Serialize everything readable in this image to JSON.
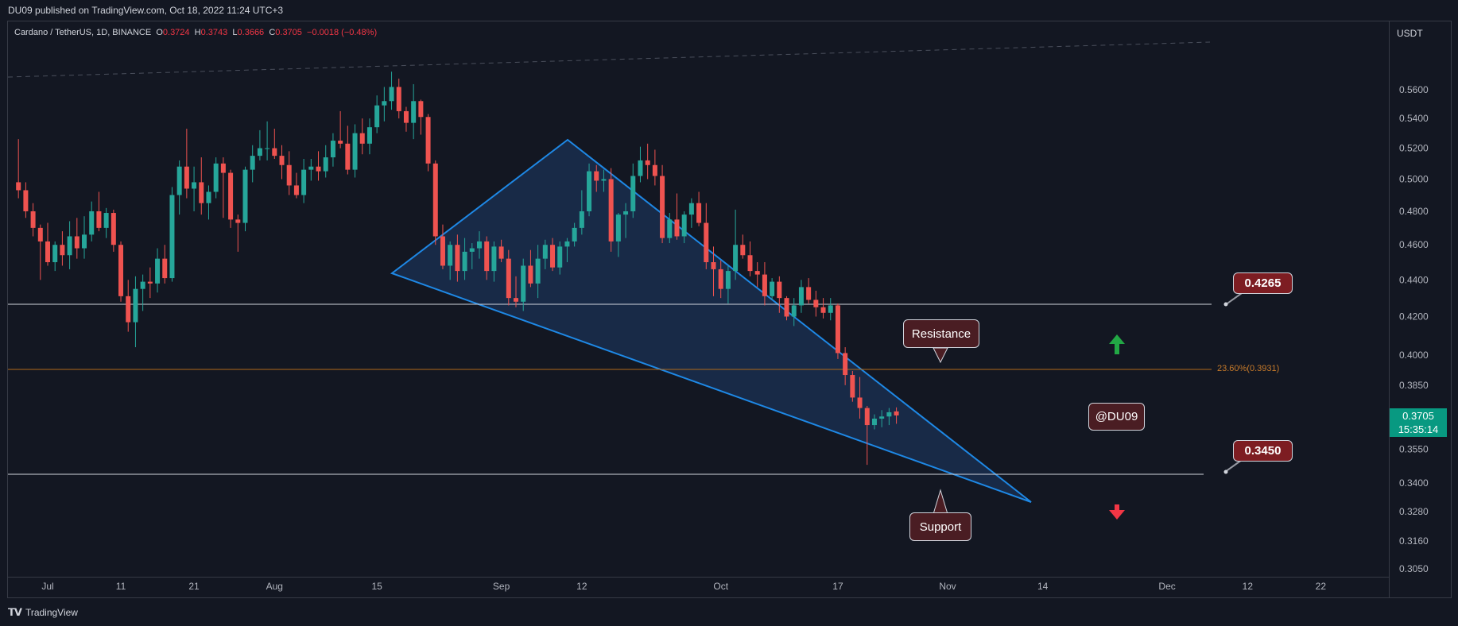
{
  "header": {
    "published_text": "DU09 published on TradingView.com, Oct 18, 2022 11:24 UTC+3"
  },
  "legend": {
    "symbol": "Cardano / TetherUS, 1D, BINANCE",
    "o_label": "O",
    "o_value": "0.3724",
    "h_label": "H",
    "h_value": "0.3743",
    "l_label": "L",
    "l_value": "0.3666",
    "c_label": "C",
    "c_value": "0.3705",
    "change": "−0.0018 (−0.48%)"
  },
  "price_axis": {
    "currency": "USDT",
    "ticks": [
      "0.5600",
      "0.5400",
      "0.5200",
      "0.5000",
      "0.4800",
      "0.4600",
      "0.4400",
      "0.4200",
      "0.4000",
      "0.3850",
      "0.3700",
      "0.3550",
      "0.3400",
      "0.3280",
      "0.3160",
      "0.3050"
    ],
    "last_price": "0.3705",
    "countdown": "15:35:14"
  },
  "time_axis": {
    "ticks": [
      "Jul",
      "11",
      "21",
      "Aug",
      "15",
      "Sep",
      "12",
      "Oct",
      "17",
      "Nov",
      "14",
      "Dec",
      "12",
      "22"
    ]
  },
  "annotations": {
    "resistance_label": "Resistance",
    "support_label": "Support",
    "watermark_label": "@DU09",
    "resistance_level": "0.4265",
    "support_level": "0.3450",
    "fib_label": "23.60%(0.3931)"
  },
  "colors": {
    "up": "#26a69a",
    "down": "#ef5350",
    "background": "#131722",
    "triangle_stroke": "#1e88e5",
    "triangle_fill": "#1e3a66",
    "fib_line": "#b0691a",
    "callout_bg": "#4a1d23",
    "arrow_up": "#22a845",
    "arrow_down": "#f23645"
  },
  "footer": {
    "brand": "TradingView"
  },
  "chart_data": {
    "type": "candlestick",
    "title": "Cardano / TetherUS, 1D, BINANCE",
    "ylabel": "USDT",
    "y_scale": "log",
    "ylim": [
      0.304,
      0.576
    ],
    "x_start": "2022-06-27",
    "x_end": "2022-12-29",
    "series": [
      {
        "name": "ADAUSDT",
        "candles": [
          [
            "2022-06-27",
            0.498,
            0.526,
            0.488,
            0.493
          ],
          [
            "2022-06-28",
            0.493,
            0.498,
            0.476,
            0.48
          ],
          [
            "2022-06-29",
            0.48,
            0.485,
            0.465,
            0.47
          ],
          [
            "2022-06-30",
            0.47,
            0.472,
            0.44,
            0.462
          ],
          [
            "2022-07-01",
            0.462,
            0.473,
            0.448,
            0.45
          ],
          [
            "2022-07-02",
            0.45,
            0.462,
            0.445,
            0.46
          ],
          [
            "2022-07-03",
            0.46,
            0.468,
            0.448,
            0.454
          ],
          [
            "2022-07-04",
            0.454,
            0.474,
            0.446,
            0.465
          ],
          [
            "2022-07-05",
            0.465,
            0.476,
            0.452,
            0.458
          ],
          [
            "2022-07-06",
            0.458,
            0.477,
            0.452,
            0.466
          ],
          [
            "2022-07-07",
            0.466,
            0.486,
            0.462,
            0.48
          ],
          [
            "2022-07-08",
            0.48,
            0.492,
            0.468,
            0.47
          ],
          [
            "2022-07-09",
            0.47,
            0.482,
            0.464,
            0.479
          ],
          [
            "2022-07-10",
            0.479,
            0.481,
            0.456,
            0.46
          ],
          [
            "2022-07-11",
            0.46,
            0.462,
            0.428,
            0.431
          ],
          [
            "2022-07-12",
            0.431,
            0.44,
            0.412,
            0.417
          ],
          [
            "2022-07-13",
            0.417,
            0.442,
            0.404,
            0.435
          ],
          [
            "2022-07-14",
            0.435,
            0.443,
            0.423,
            0.439
          ],
          [
            "2022-07-15",
            0.439,
            0.447,
            0.43,
            0.438
          ],
          [
            "2022-07-16",
            0.438,
            0.458,
            0.433,
            0.452
          ],
          [
            "2022-07-17",
            0.452,
            0.46,
            0.438,
            0.441
          ],
          [
            "2022-07-18",
            0.441,
            0.495,
            0.439,
            0.49
          ],
          [
            "2022-07-19",
            0.49,
            0.512,
            0.478,
            0.508
          ],
          [
            "2022-07-20",
            0.508,
            0.533,
            0.488,
            0.494
          ],
          [
            "2022-07-21",
            0.494,
            0.508,
            0.48,
            0.498
          ],
          [
            "2022-07-22",
            0.498,
            0.514,
            0.478,
            0.485
          ],
          [
            "2022-07-23",
            0.485,
            0.496,
            0.475,
            0.492
          ],
          [
            "2022-07-24",
            0.492,
            0.514,
            0.488,
            0.51
          ],
          [
            "2022-07-25",
            0.51,
            0.514,
            0.476,
            0.504
          ],
          [
            "2022-07-26",
            0.504,
            0.506,
            0.47,
            0.475
          ],
          [
            "2022-07-27",
            0.475,
            0.478,
            0.456,
            0.473
          ],
          [
            "2022-07-28",
            0.473,
            0.508,
            0.468,
            0.506
          ],
          [
            "2022-07-29",
            0.506,
            0.522,
            0.498,
            0.515
          ],
          [
            "2022-07-30",
            0.515,
            0.532,
            0.512,
            0.52
          ],
          [
            "2022-07-31",
            0.52,
            0.538,
            0.512,
            0.52
          ],
          [
            "2022-08-01",
            0.52,
            0.533,
            0.513,
            0.515
          ],
          [
            "2022-08-02",
            0.515,
            0.522,
            0.5,
            0.509
          ],
          [
            "2022-08-03",
            0.509,
            0.518,
            0.49,
            0.496
          ],
          [
            "2022-08-04",
            0.496,
            0.504,
            0.488,
            0.49
          ],
          [
            "2022-08-05",
            0.49,
            0.513,
            0.485,
            0.506
          ],
          [
            "2022-08-06",
            0.506,
            0.513,
            0.499,
            0.508
          ],
          [
            "2022-08-07",
            0.508,
            0.518,
            0.499,
            0.505
          ],
          [
            "2022-08-08",
            0.505,
            0.522,
            0.501,
            0.514
          ],
          [
            "2022-08-09",
            0.514,
            0.53,
            0.508,
            0.525
          ],
          [
            "2022-08-10",
            0.525,
            0.545,
            0.52,
            0.523
          ],
          [
            "2022-08-11",
            0.523,
            0.535,
            0.503,
            0.506
          ],
          [
            "2022-08-12",
            0.506,
            0.536,
            0.501,
            0.53
          ],
          [
            "2022-08-13",
            0.53,
            0.54,
            0.516,
            0.523
          ],
          [
            "2022-08-14",
            0.523,
            0.54,
            0.516,
            0.534
          ],
          [
            "2022-08-15",
            0.534,
            0.556,
            0.53,
            0.549
          ],
          [
            "2022-08-16",
            0.549,
            0.562,
            0.538,
            0.552
          ],
          [
            "2022-08-17",
            0.552,
            0.573,
            0.546,
            0.562
          ],
          [
            "2022-08-18",
            0.562,
            0.568,
            0.54,
            0.545
          ],
          [
            "2022-08-19",
            0.545,
            0.548,
            0.531,
            0.537
          ],
          [
            "2022-08-20",
            0.537,
            0.564,
            0.526,
            0.552
          ],
          [
            "2022-08-21",
            0.552,
            0.553,
            0.529,
            0.541
          ],
          [
            "2022-08-22",
            0.541,
            0.543,
            0.505,
            0.51
          ],
          [
            "2022-08-23",
            0.51,
            0.512,
            0.46,
            0.465
          ],
          [
            "2022-08-24",
            0.465,
            0.472,
            0.446,
            0.448
          ],
          [
            "2022-08-25",
            0.448,
            0.462,
            0.44,
            0.46
          ],
          [
            "2022-08-26",
            0.46,
            0.466,
            0.439,
            0.445
          ],
          [
            "2022-08-27",
            0.445,
            0.464,
            0.44,
            0.456
          ],
          [
            "2022-08-28",
            0.456,
            0.461,
            0.446,
            0.458
          ],
          [
            "2022-08-29",
            0.458,
            0.468,
            0.452,
            0.462
          ],
          [
            "2022-08-30",
            0.462,
            0.465,
            0.44,
            0.445
          ],
          [
            "2022-08-31",
            0.445,
            0.462,
            0.439,
            0.459
          ],
          [
            "2022-09-01",
            0.459,
            0.463,
            0.45,
            0.452
          ],
          [
            "2022-09-02",
            0.452,
            0.457,
            0.426,
            0.43
          ],
          [
            "2022-09-03",
            0.43,
            0.442,
            0.425,
            0.428
          ],
          [
            "2022-09-04",
            0.428,
            0.452,
            0.423,
            0.448
          ],
          [
            "2022-09-05",
            0.448,
            0.457,
            0.436,
            0.438
          ],
          [
            "2022-09-06",
            0.438,
            0.46,
            0.43,
            0.452
          ],
          [
            "2022-09-07",
            0.452,
            0.463,
            0.446,
            0.46
          ],
          [
            "2022-09-08",
            0.46,
            0.464,
            0.445,
            0.447
          ],
          [
            "2022-09-09",
            0.447,
            0.462,
            0.443,
            0.459
          ],
          [
            "2022-09-10",
            0.459,
            0.464,
            0.45,
            0.462
          ],
          [
            "2022-09-11",
            0.462,
            0.473,
            0.459,
            0.47
          ],
          [
            "2022-09-12",
            0.47,
            0.493,
            0.466,
            0.48
          ],
          [
            "2022-09-13",
            0.48,
            0.51,
            0.477,
            0.505
          ],
          [
            "2022-09-14",
            0.505,
            0.509,
            0.492,
            0.499
          ],
          [
            "2022-09-15",
            0.499,
            0.506,
            0.492,
            0.5
          ],
          [
            "2022-09-16",
            0.5,
            0.507,
            0.456,
            0.462
          ],
          [
            "2022-09-17",
            0.462,
            0.479,
            0.453,
            0.478
          ],
          [
            "2022-09-18",
            0.478,
            0.485,
            0.464,
            0.48
          ],
          [
            "2022-09-19",
            0.48,
            0.51,
            0.476,
            0.502
          ],
          [
            "2022-09-20",
            0.502,
            0.521,
            0.498,
            0.512
          ],
          [
            "2022-09-21",
            0.512,
            0.523,
            0.5,
            0.509
          ],
          [
            "2022-09-22",
            0.509,
            0.519,
            0.496,
            0.502
          ],
          [
            "2022-09-23",
            0.502,
            0.509,
            0.461,
            0.464
          ],
          [
            "2022-09-24",
            0.464,
            0.479,
            0.461,
            0.475
          ],
          [
            "2022-09-25",
            0.475,
            0.491,
            0.463,
            0.465
          ],
          [
            "2022-09-26",
            0.465,
            0.48,
            0.461,
            0.478
          ],
          [
            "2022-09-27",
            0.478,
            0.488,
            0.47,
            0.485
          ],
          [
            "2022-09-28",
            0.485,
            0.492,
            0.471,
            0.473
          ],
          [
            "2022-09-29",
            0.473,
            0.485,
            0.446,
            0.45
          ],
          [
            "2022-09-30",
            0.45,
            0.459,
            0.431,
            0.446
          ],
          [
            "2022-10-01",
            0.446,
            0.451,
            0.43,
            0.435
          ],
          [
            "2022-10-02",
            0.435,
            0.448,
            0.427,
            0.445
          ],
          [
            "2022-10-03",
            0.445,
            0.481,
            0.44,
            0.46
          ],
          [
            "2022-10-04",
            0.46,
            0.466,
            0.452,
            0.454
          ],
          [
            "2022-10-05",
            0.454,
            0.462,
            0.442,
            0.445
          ],
          [
            "2022-10-06",
            0.445,
            0.45,
            0.436,
            0.443
          ],
          [
            "2022-10-07",
            0.443,
            0.45,
            0.426,
            0.431
          ],
          [
            "2022-10-08",
            0.431,
            0.441,
            0.429,
            0.439
          ],
          [
            "2022-10-09",
            0.439,
            0.442,
            0.422,
            0.43
          ],
          [
            "2022-10-10",
            0.43,
            0.431,
            0.418,
            0.42
          ],
          [
            "2022-10-11",
            0.42,
            0.43,
            0.415,
            0.426
          ],
          [
            "2022-10-12",
            0.426,
            0.44,
            0.422,
            0.436
          ],
          [
            "2022-10-13",
            0.436,
            0.441,
            0.427,
            0.429
          ],
          [
            "2022-10-14",
            0.429,
            0.434,
            0.42,
            0.425
          ],
          [
            "2022-10-15",
            0.425,
            0.43,
            0.419,
            0.422
          ],
          [
            "2022-10-16",
            0.422,
            0.43,
            0.418,
            0.426
          ],
          [
            "2022-10-17",
            0.426,
            0.427,
            0.398,
            0.401
          ],
          [
            "2022-10-18",
            0.401,
            0.404,
            0.385,
            0.39
          ],
          [
            "2022-10-19",
            0.39,
            0.392,
            0.377,
            0.379
          ],
          [
            "2022-10-20",
            0.379,
            0.389,
            0.369,
            0.374
          ],
          [
            "2022-10-21",
            0.374,
            0.375,
            0.348,
            0.366
          ],
          [
            "2022-10-22",
            0.366,
            0.371,
            0.364,
            0.369
          ],
          [
            "2022-10-23",
            0.369,
            0.373,
            0.365,
            0.37
          ],
          [
            "2022-10-24",
            0.37,
            0.374,
            0.366,
            0.372
          ],
          [
            "2022-10-25",
            0.3724,
            0.3743,
            0.3666,
            0.3705
          ]
        ]
      }
    ]
  }
}
